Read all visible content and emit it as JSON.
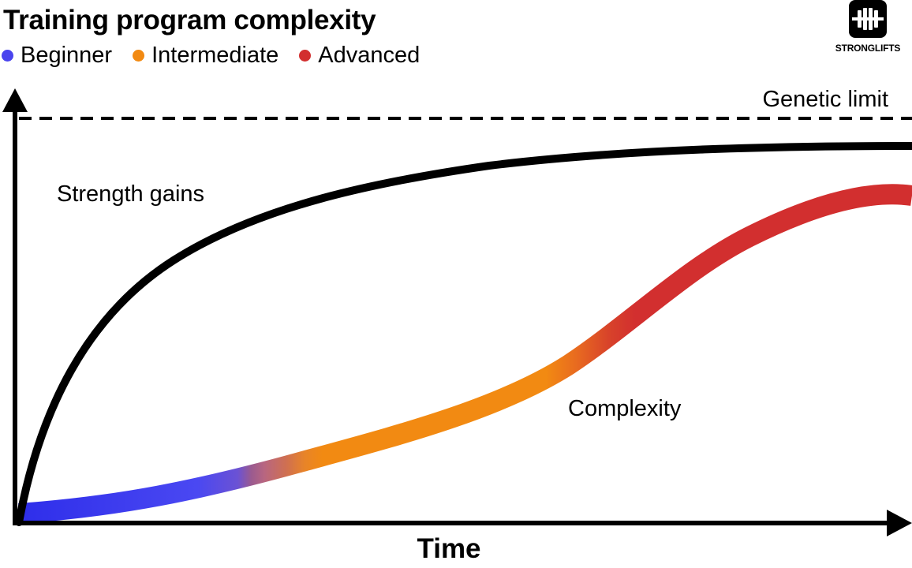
{
  "title": "Training program complexity",
  "legend": [
    {
      "label": "Beginner",
      "color": "#4a44ee"
    },
    {
      "label": "Intermediate",
      "color": "#f28a12"
    },
    {
      "label": "Advanced",
      "color": "#d22f2f"
    }
  ],
  "logo": {
    "text": "STRONGLIFTS",
    "icon": "barbell-icon"
  },
  "diagram": {
    "x_axis_label": "Time",
    "limit_label": "Genetic limit",
    "strength_label": "Strength gains",
    "complexity_label": "Complexity"
  },
  "colors": {
    "beginner": "#3a3aea",
    "intermediate": "#f28a12",
    "advanced": "#d22f2f",
    "strength_curve": "#000000"
  }
}
